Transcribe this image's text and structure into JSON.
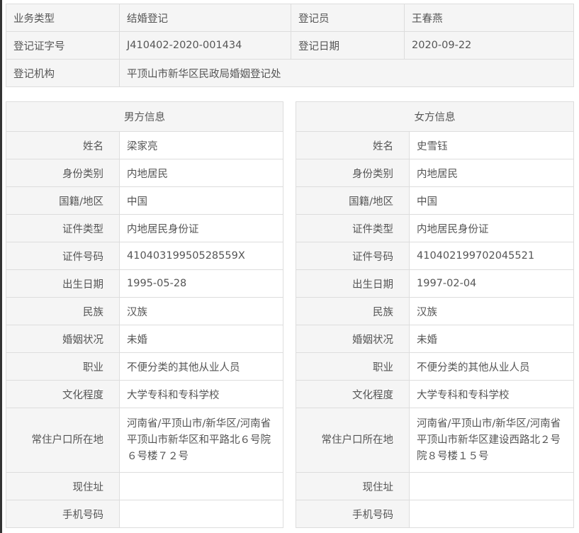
{
  "summary": {
    "business_type_label": "业务类型",
    "business_type": "结婚登记",
    "registrar_label": "登记员",
    "registrar": "王春燕",
    "cert_no_label": "登记证字号",
    "cert_no": "J410402-2020-001434",
    "reg_date_label": "登记日期",
    "reg_date": "2020-09-22",
    "office_label": "登记机构",
    "office": "平顶山市新华区民政局婚姻登记处"
  },
  "labels": [
    "姓名",
    "身份类别",
    "国籍/地区",
    "证件类型",
    "证件号码",
    "出生日期",
    "民族",
    "婚姻状况",
    "职业",
    "文化程度",
    "常住户口所在地",
    "现住址",
    "手机号码"
  ],
  "male": {
    "title": "男方信息",
    "values": [
      "梁家亮",
      "内地居民",
      "中国",
      "内地居民身份证",
      "41040319950528559X",
      "1995-05-28",
      "汉族",
      "未婚",
      "不便分类的其他从业人员",
      "大学专科和专科学校",
      "河南省/平顶山市/新华区/河南省平顶山市新华区和平路北６号院６号楼７２号",
      "",
      ""
    ]
  },
  "female": {
    "title": "女方信息",
    "values": [
      "史雪钰",
      "内地居民",
      "中国",
      "内地居民身份证",
      "410402199702045521",
      "1997-02-04",
      "汉族",
      "未婚",
      "不便分类的其他从业人员",
      "大学专科和专科学校",
      "河南省/平顶山市/新华区/河南省平顶山市新华区建设西路北２号院８号楼１５号",
      "",
      ""
    ]
  }
}
